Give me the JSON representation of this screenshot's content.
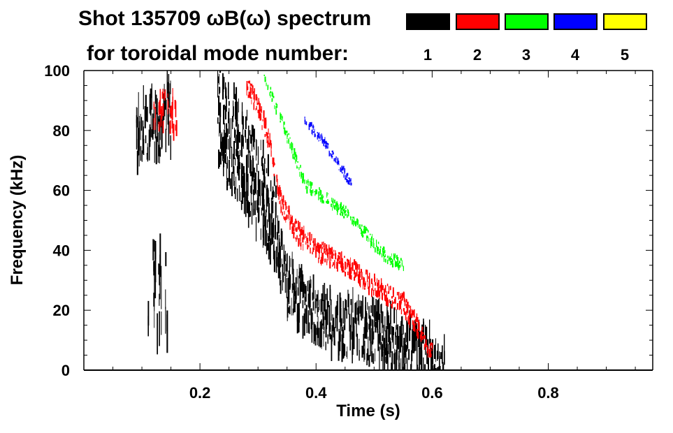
{
  "chart_data": {
    "type": "heatmap",
    "title": "Shot 135709 ωB(ω) spectrum",
    "subtitle": "for toroidal mode number:",
    "xlabel": "Time (s)",
    "ylabel": "Frequency (kHz)",
    "xlim": [
      0,
      0.98
    ],
    "ylim": [
      0,
      100
    ],
    "xticks": [
      "0.2",
      "0.4",
      "0.6",
      "0.8"
    ],
    "xtick_values": [
      0.2,
      0.4,
      0.6,
      0.8
    ],
    "yticks": [
      "0",
      "20",
      "40",
      "60",
      "80",
      "100"
    ],
    "ytick_values": [
      0,
      20,
      40,
      60,
      80,
      100
    ],
    "legend_placement": "top-right",
    "legend": [
      {
        "label": "1",
        "color": "#000000"
      },
      {
        "label": "2",
        "color": "#ff0000"
      },
      {
        "label": "3",
        "color": "#00ff00"
      },
      {
        "label": "4",
        "color": "#0000ff"
      },
      {
        "label": "5",
        "color": "#ffff00"
      }
    ],
    "features": [
      {
        "mode": 1,
        "name": "early burst",
        "t": [
          0.09,
          0.15
        ],
        "f_center": [
          80,
          85
        ],
        "f_spread": 14,
        "density": 0.9
      },
      {
        "mode": 1,
        "name": "early tail",
        "t": [
          0.11,
          0.145
        ],
        "f_center": [
          30,
          20
        ],
        "f_spread": 20,
        "density": 0.4
      },
      {
        "mode": 1,
        "name": "main chirp",
        "points": [
          [
            0.23,
            75
          ],
          [
            0.28,
            62
          ],
          [
            0.32,
            48
          ],
          [
            0.35,
            28
          ],
          [
            0.4,
            18
          ],
          [
            0.45,
            15
          ],
          [
            0.5,
            12
          ],
          [
            0.55,
            8
          ],
          [
            0.6,
            3
          ],
          [
            0.62,
            1
          ]
        ],
        "f_spread": 12,
        "density": 1.0
      },
      {
        "mode": 1,
        "name": "upper branch",
        "points": [
          [
            0.23,
            95
          ],
          [
            0.26,
            85
          ],
          [
            0.3,
            70
          ],
          [
            0.33,
            55
          ]
        ],
        "f_spread": 10,
        "density": 0.7
      },
      {
        "mode": 2,
        "name": "early red",
        "t": [
          0.12,
          0.16
        ],
        "f_center": [
          88,
          85
        ],
        "f_spread": 8,
        "density": 0.5
      },
      {
        "mode": 2,
        "name": "red chirp",
        "points": [
          [
            0.28,
            95
          ],
          [
            0.3,
            88
          ],
          [
            0.32,
            75
          ],
          [
            0.34,
            55
          ],
          [
            0.37,
            45
          ],
          [
            0.4,
            40
          ],
          [
            0.45,
            35
          ],
          [
            0.5,
            28
          ],
          [
            0.55,
            22
          ],
          [
            0.58,
            12
          ],
          [
            0.6,
            5
          ]
        ],
        "f_spread": 4,
        "density": 0.9
      },
      {
        "mode": 3,
        "name": "green chirp",
        "points": [
          [
            0.31,
            98
          ],
          [
            0.35,
            78
          ],
          [
            0.38,
            62
          ],
          [
            0.42,
            57
          ],
          [
            0.46,
            51
          ],
          [
            0.5,
            42
          ],
          [
            0.52,
            38
          ],
          [
            0.55,
            35
          ]
        ],
        "f_spread": 2.5,
        "density": 0.8
      },
      {
        "mode": 4,
        "name": "blue chirp",
        "points": [
          [
            0.38,
            83
          ],
          [
            0.41,
            77
          ],
          [
            0.44,
            68
          ],
          [
            0.46,
            62
          ]
        ],
        "f_spread": 2,
        "density": 0.7
      }
    ]
  }
}
